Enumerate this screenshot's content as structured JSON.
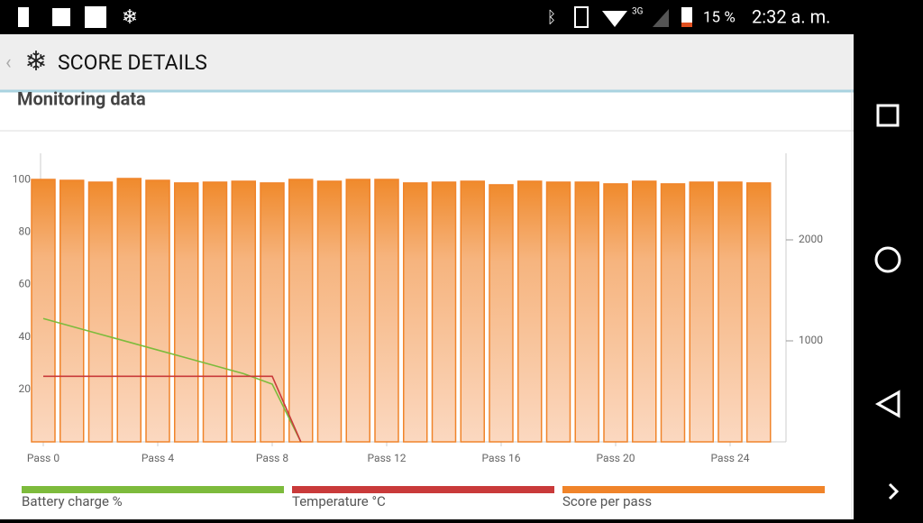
{
  "status_bar": {
    "network": "3G",
    "battery": "15 %",
    "time": "2:32 a. m."
  },
  "header": {
    "title": "SCORE DETAILS"
  },
  "card": {
    "title": "Monitoring data"
  },
  "chart_data": {
    "type": "bar",
    "categories": [
      "Pass 0",
      null,
      null,
      null,
      "Pass 4",
      null,
      null,
      null,
      "Pass 8",
      null,
      null,
      null,
      "Pass 12",
      null,
      null,
      null,
      "Pass 16",
      null,
      null,
      null,
      "Pass 20",
      null,
      null,
      null,
      "Pass 24",
      null
    ],
    "series": [
      {
        "name": "Battery charge %",
        "color": "#7dbb3c",
        "type": "line",
        "values": [
          47,
          44,
          41,
          38,
          35,
          32,
          29,
          26,
          22,
          0,
          null,
          null,
          null,
          null,
          null,
          null,
          null,
          null,
          null,
          null,
          null,
          null,
          null,
          null,
          null,
          null
        ]
      },
      {
        "name": "Temperature °C",
        "color": "#c93a3a",
        "type": "line",
        "values": [
          25,
          25,
          25,
          25,
          25,
          25,
          25,
          25,
          25,
          0,
          null,
          null,
          null,
          null,
          null,
          null,
          null,
          null,
          null,
          null,
          null,
          null,
          null,
          null,
          null,
          null
        ]
      },
      {
        "name": "Score per pass",
        "color": "#f0842a",
        "type": "bar",
        "axis": "y2",
        "values": [
          2598,
          2589,
          2571,
          2607,
          2589,
          2563,
          2571,
          2580,
          2563,
          2598,
          2580,
          2598,
          2598,
          2563,
          2571,
          2580,
          2545,
          2580,
          2571,
          2571,
          2554,
          2580,
          2554,
          2571,
          2571,
          2563
        ]
      }
    ],
    "ylim": [
      0,
      110
    ],
    "yticks": [
      20,
      40,
      60,
      80,
      100
    ],
    "y2lim": [
      0,
      2857
    ],
    "y2ticks": [
      1000,
      2000
    ]
  }
}
